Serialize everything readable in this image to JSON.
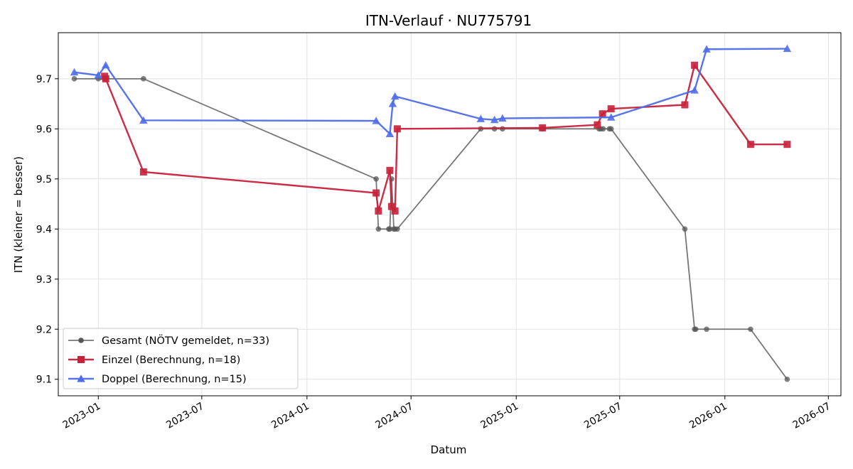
{
  "chart_data": {
    "type": "line",
    "title": "ITN-Verlauf · NU775791",
    "xlabel": "Datum",
    "ylabel": "ITN  (kleiner = besser)",
    "x_ticks": [
      "2023-01",
      "2023-07",
      "2024-01",
      "2024-07",
      "2025-01",
      "2025-07",
      "2026-01",
      "2026-07"
    ],
    "y_ticks": [
      "9.1",
      "9.2",
      "9.3",
      "9.4",
      "9.5",
      "9.6",
      "9.7"
    ],
    "xlim": [
      "2022-10-23",
      "2026-07-23"
    ],
    "ylim": [
      9.067,
      9.792
    ],
    "grid": true,
    "legend_position": "lower-left",
    "series": [
      {
        "name": "Gesamt (NÖTV gemeldet, n=33)",
        "color": "#555555",
        "marker": "circle",
        "points": [
          [
            "2022-11-20",
            9.7
          ],
          [
            "2023-01-01",
            9.7
          ],
          [
            "2023-01-12",
            9.7
          ],
          [
            "2023-03-21",
            9.7
          ],
          [
            "2024-05-01",
            9.5
          ],
          [
            "2024-05-05",
            9.4
          ],
          [
            "2024-05-23",
            9.4
          ],
          [
            "2024-05-25",
            9.4
          ],
          [
            "2024-05-28",
            9.5
          ],
          [
            "2024-06-01",
            9.4
          ],
          [
            "2024-06-03",
            9.4
          ],
          [
            "2024-06-07",
            9.4
          ],
          [
            "2024-10-31",
            9.6
          ],
          [
            "2024-11-24",
            9.6
          ],
          [
            "2024-12-08",
            9.6
          ],
          [
            "2025-02-16",
            9.6
          ],
          [
            "2025-05-26",
            9.6
          ],
          [
            "2025-05-29",
            9.6
          ],
          [
            "2025-06-02",
            9.6
          ],
          [
            "2025-06-13",
            9.6
          ],
          [
            "2025-06-16",
            9.6
          ],
          [
            "2025-10-23",
            9.4
          ],
          [
            "2025-11-09",
            9.2
          ],
          [
            "2025-11-11",
            9.2
          ],
          [
            "2025-11-30",
            9.2
          ],
          [
            "2026-02-15",
            9.2
          ],
          [
            "2026-04-20",
            9.1
          ]
        ]
      },
      {
        "name": "Einzel (Berechnung, n=18)",
        "color": "#c8213a",
        "marker": "square",
        "points": [
          [
            "2023-01-12",
            9.705
          ],
          [
            "2023-01-14",
            9.7
          ],
          [
            "2023-03-21",
            9.514
          ],
          [
            "2024-05-01",
            9.472
          ],
          [
            "2024-05-05",
            9.436
          ],
          [
            "2024-05-25",
            9.517
          ],
          [
            "2024-05-28",
            9.445
          ],
          [
            "2024-06-03",
            9.436
          ],
          [
            "2024-06-07",
            9.6
          ],
          [
            "2025-02-16",
            9.602
          ],
          [
            "2025-05-23",
            9.608
          ],
          [
            "2025-06-01",
            9.63
          ],
          [
            "2025-06-16",
            9.64
          ],
          [
            "2025-10-23",
            9.648
          ],
          [
            "2025-11-09",
            9.727
          ],
          [
            "2026-02-15",
            9.569
          ],
          [
            "2026-04-20",
            9.569
          ]
        ]
      },
      {
        "name": "Doppel (Berechnung, n=15)",
        "color": "#4f6de8",
        "marker": "triangle",
        "points": [
          [
            "2022-11-20",
            9.713
          ],
          [
            "2023-01-01",
            9.707
          ],
          [
            "2023-01-14",
            9.727
          ],
          [
            "2023-03-21",
            9.617
          ],
          [
            "2024-05-01",
            9.616
          ],
          [
            "2024-05-25",
            9.59
          ],
          [
            "2024-05-30",
            9.65
          ],
          [
            "2024-06-03",
            9.665
          ],
          [
            "2024-10-31",
            9.62
          ],
          [
            "2024-11-24",
            9.618
          ],
          [
            "2024-12-08",
            9.621
          ],
          [
            "2025-06-16",
            9.623
          ],
          [
            "2025-11-09",
            9.677
          ],
          [
            "2025-11-30",
            9.759
          ],
          [
            "2026-04-20",
            9.76
          ]
        ]
      }
    ]
  }
}
